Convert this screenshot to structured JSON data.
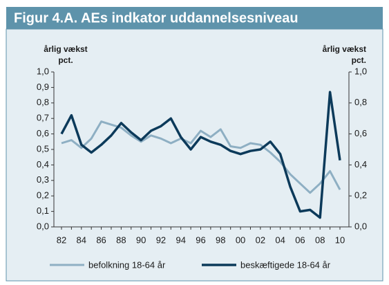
{
  "chart_data": {
    "type": "line",
    "title": "Figur 4.A. AEs indkator uddannelsesniveau",
    "ylabel_lines": [
      "årlig vækst",
      "pct."
    ],
    "y2label_lines": [
      "årlig vækst",
      "pct."
    ],
    "categories": [
      "82",
      null,
      "84",
      null,
      "86",
      null,
      "88",
      null,
      "90",
      null,
      "92",
      null,
      "94",
      null,
      "96",
      null,
      "98",
      null,
      "00",
      null,
      "02",
      null,
      "04",
      null,
      "06",
      null,
      "08",
      null,
      "10"
    ],
    "series": [
      {
        "name": "befolkning 18-64 år",
        "color": "#8eafc3",
        "axis": "y",
        "values": [
          0.54,
          0.56,
          0.51,
          0.57,
          0.68,
          0.66,
          0.64,
          0.59,
          0.55,
          0.59,
          0.57,
          0.54,
          0.57,
          0.54,
          0.62,
          0.58,
          0.63,
          0.52,
          0.51,
          0.54,
          0.53,
          0.48,
          0.42,
          0.34,
          0.28,
          0.22,
          0.28,
          0.36,
          0.24
        ]
      },
      {
        "name": "beskæftigede 18-64 år",
        "color": "#0c3a5a",
        "axis": "y2",
        "values": [
          0.6,
          0.72,
          0.53,
          0.48,
          0.53,
          0.59,
          0.67,
          0.61,
          0.56,
          0.62,
          0.65,
          0.7,
          0.58,
          0.5,
          0.58,
          0.55,
          0.53,
          0.49,
          0.47,
          0.49,
          0.5,
          0.55,
          0.47,
          0.26,
          0.1,
          0.11,
          0.06,
          0.87,
          0.43
        ]
      }
    ],
    "ylim": [
      0,
      1
    ],
    "yticks": [
      {
        "value": 0,
        "label": "0,0"
      },
      {
        "value": 0.1,
        "label": "0,1"
      },
      {
        "value": 0.2,
        "label": "0,2"
      },
      {
        "value": 0.3,
        "label": "0,3"
      },
      {
        "value": 0.4,
        "label": "0,4"
      },
      {
        "value": 0.5,
        "label": "0,5"
      },
      {
        "value": 0.6,
        "label": "0,6"
      },
      {
        "value": 0.7,
        "label": "0,7"
      },
      {
        "value": 0.8,
        "label": "0,8"
      },
      {
        "value": 0.9,
        "label": "0,9"
      },
      {
        "value": 1,
        "label": "1,0"
      }
    ],
    "y2lim": [
      0,
      1
    ],
    "y2ticks": [
      {
        "value": 0,
        "label": "0,0"
      },
      {
        "value": 0.2,
        "label": "0,2"
      },
      {
        "value": 0.4,
        "label": "0,4"
      },
      {
        "value": 0.6,
        "label": "0,6"
      },
      {
        "value": 0.8,
        "label": "0,8"
      },
      {
        "value": 1,
        "label": "1,0"
      }
    ],
    "grid": false,
    "legend": "bottom"
  }
}
